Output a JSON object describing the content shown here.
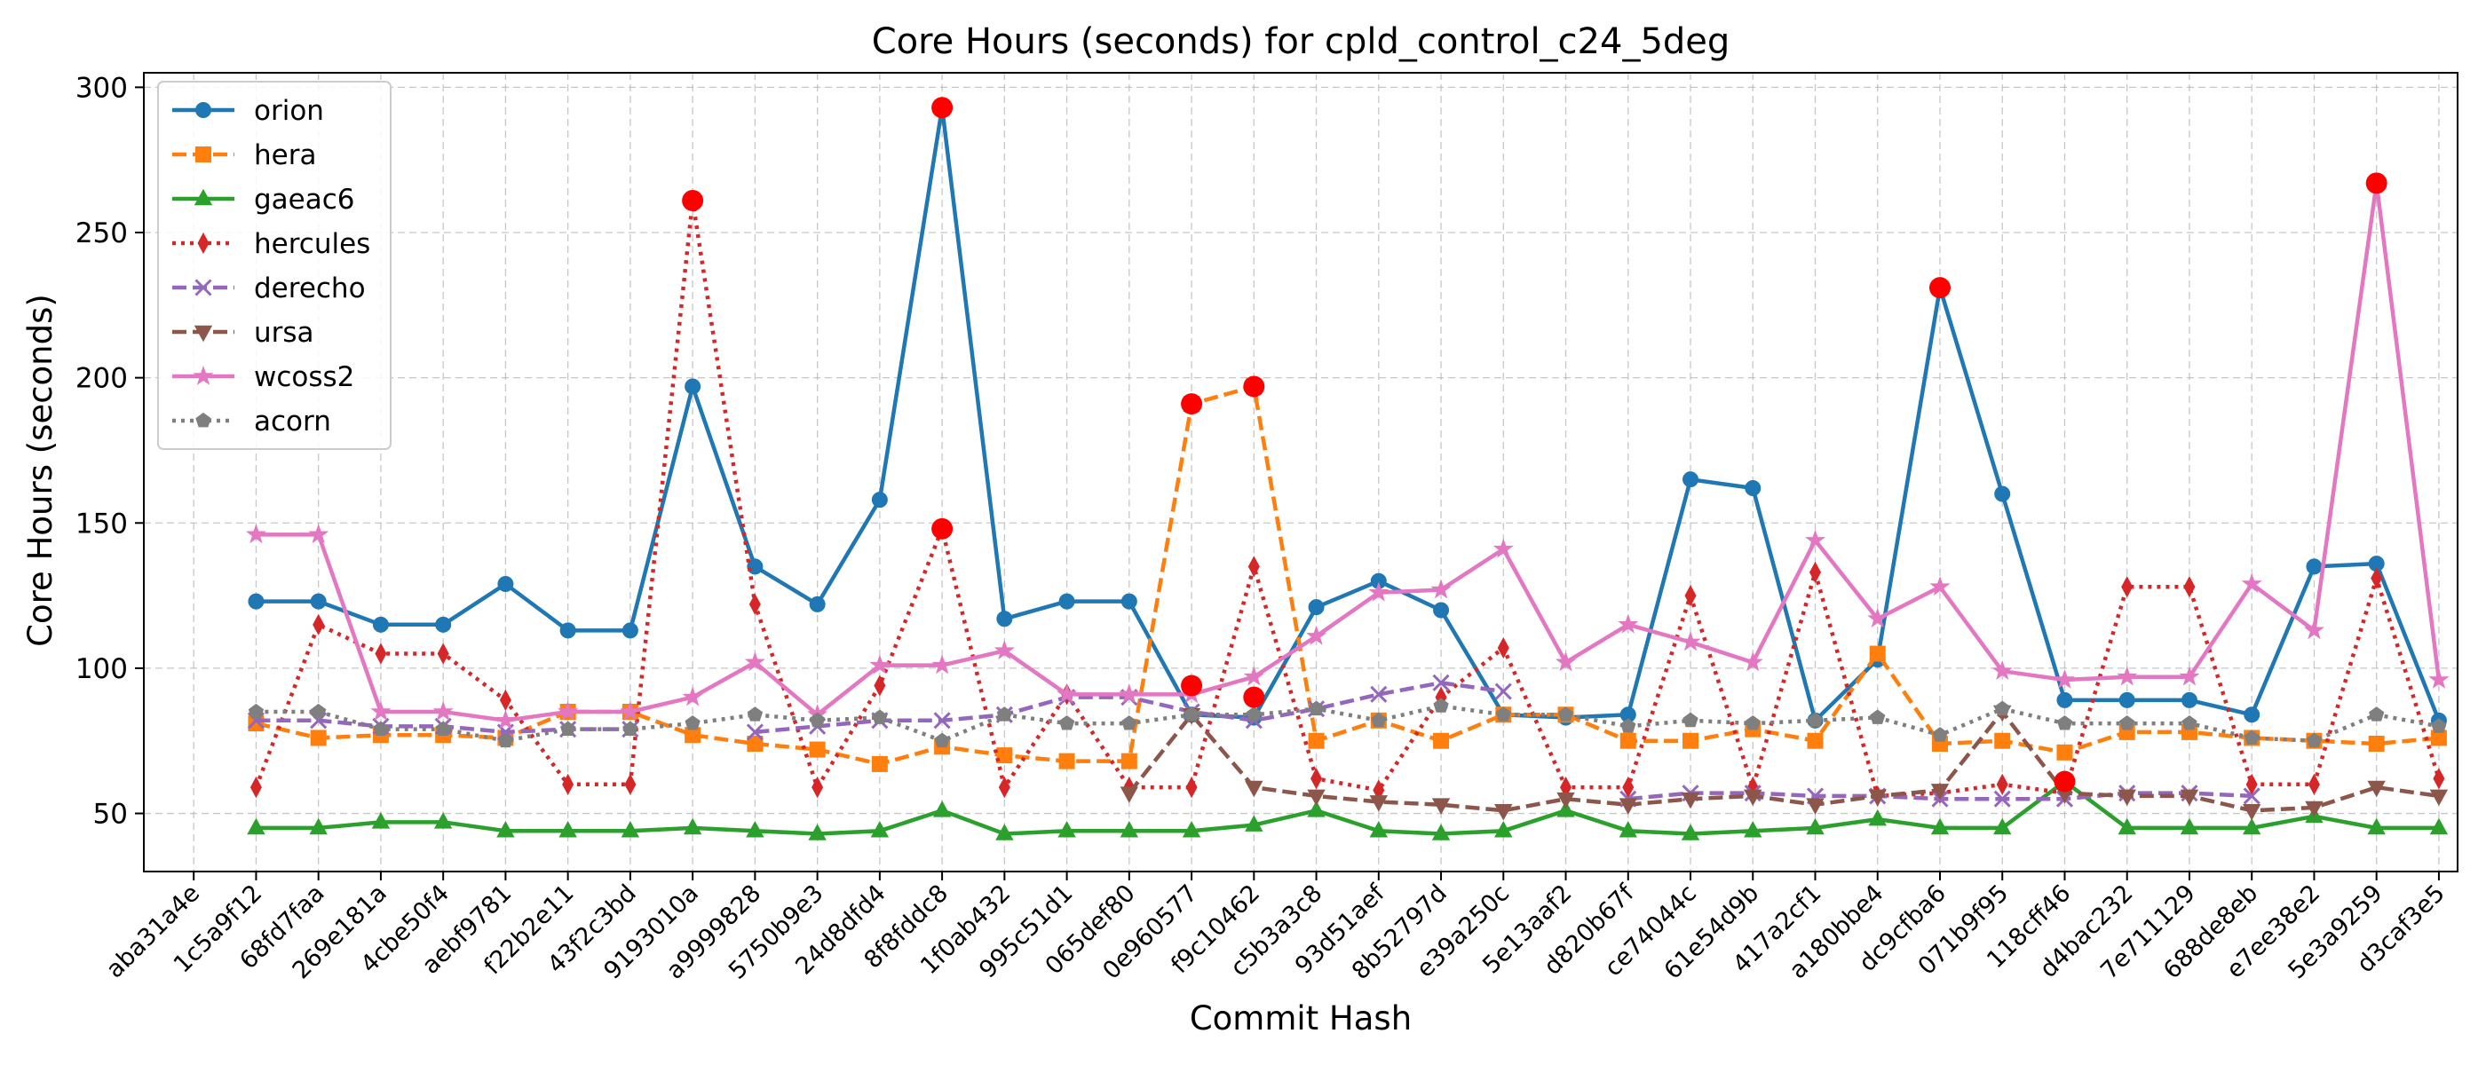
{
  "chart_data": {
    "type": "line",
    "title": "Core Hours (seconds) for cpld_control_c24_5deg",
    "xlabel": "Commit Hash",
    "ylabel": "Core Hours (seconds)",
    "ylim": [
      30,
      305
    ],
    "yticks": [
      50,
      100,
      150,
      200,
      250,
      300
    ],
    "grid": true,
    "legend_position": "top-left",
    "categories": [
      "aba31a4e",
      "1c5a9f12",
      "68fd7faa",
      "269e181a",
      "4cbe50f4",
      "aebf9781",
      "f22b2e11",
      "43f2c3bd",
      "9193010a",
      "a9999828",
      "5750b9e3",
      "24d8dfd4",
      "8f8fddc8",
      "1f0ab432",
      "995c51d1",
      "065def80",
      "0e960577",
      "f9c10462",
      "c5b3a3c8",
      "93d51aef",
      "8b52797d",
      "e39a250c",
      "5e13aaf2",
      "d820b67f",
      "ce74044c",
      "61e54d9b",
      "417a2cf1",
      "a180bbe4",
      "dc9cfba6",
      "071b9f95",
      "118cff46",
      "d4bac232",
      "7e711129",
      "688de8eb",
      "e7ee38e2",
      "5e3a9259",
      "d3caf3e5"
    ],
    "series": [
      {
        "name": "orion",
        "color": "#1f77b4",
        "dash": "solid",
        "marker": "circle",
        "values": [
          null,
          123,
          123,
          115,
          115,
          129,
          113,
          113,
          197,
          135,
          122,
          158,
          293,
          117,
          123,
          123,
          84,
          83,
          121,
          130,
          120,
          84,
          83,
          84,
          165,
          162,
          82,
          103,
          231,
          160,
          89,
          89,
          89,
          84,
          135,
          136,
          82
        ]
      },
      {
        "name": "hera",
        "color": "#ff7f0e",
        "dash": "dashed",
        "marker": "square",
        "values": [
          null,
          81,
          76,
          77,
          77,
          76,
          85,
          85,
          77,
          74,
          72,
          67,
          73,
          70,
          68,
          68,
          191,
          197,
          75,
          82,
          75,
          84,
          84,
          75,
          75,
          79,
          75,
          105,
          74,
          75,
          71,
          78,
          78,
          76,
          75,
          74,
          76
        ]
      },
      {
        "name": "gaeac6",
        "color": "#2ca02c",
        "dash": "solid",
        "marker": "triangle-up",
        "values": [
          null,
          45,
          45,
          47,
          47,
          44,
          44,
          44,
          45,
          44,
          43,
          44,
          51,
          43,
          44,
          44,
          44,
          46,
          51,
          44,
          43,
          44,
          51,
          44,
          43,
          44,
          45,
          48,
          45,
          45,
          61,
          45,
          45,
          45,
          49,
          45,
          45
        ]
      },
      {
        "name": "hercules",
        "color": "#d62728",
        "dash": "dotted",
        "marker": "thin-diamond",
        "values": [
          null,
          59,
          115,
          105,
          105,
          89,
          60,
          60,
          261,
          122,
          59,
          94,
          148,
          59,
          91,
          59,
          59,
          135,
          62,
          58,
          90,
          107,
          59,
          59,
          125,
          59,
          133,
          56,
          57,
          60,
          57,
          128,
          128,
          60,
          60,
          131,
          62
        ]
      },
      {
        "name": "derecho",
        "color": "#9467bd",
        "dash": "dashed",
        "marker": "x",
        "values": [
          null,
          82,
          82,
          80,
          80,
          78,
          79,
          79,
          null,
          78,
          80,
          82,
          82,
          84,
          90,
          90,
          85,
          82,
          86,
          91,
          95,
          92,
          null,
          55,
          57,
          57,
          56,
          56,
          55,
          55,
          55,
          57,
          57,
          56,
          null,
          null,
          null
        ]
      },
      {
        "name": "ursa",
        "color": "#8c564b",
        "dash": "dashed",
        "marker": "triangle-down",
        "values": [
          null,
          null,
          null,
          null,
          null,
          null,
          null,
          null,
          null,
          null,
          null,
          null,
          null,
          null,
          null,
          57,
          84,
          59,
          56,
          54,
          53,
          51,
          55,
          53,
          55,
          56,
          53,
          56,
          58,
          85,
          57,
          56,
          56,
          51,
          52,
          59,
          56
        ]
      },
      {
        "name": "wcoss2",
        "color": "#e377c2",
        "dash": "solid",
        "marker": "star",
        "values": [
          null,
          146,
          146,
          85,
          85,
          82,
          85,
          85,
          90,
          102,
          84,
          101,
          101,
          106,
          91,
          91,
          91,
          97,
          111,
          126,
          127,
          141,
          102,
          115,
          109,
          102,
          144,
          117,
          128,
          99,
          96,
          97,
          97,
          129,
          113,
          267,
          96
        ]
      },
      {
        "name": "acorn",
        "color": "#7f7f7f",
        "dash": "dotted",
        "marker": "pentagon",
        "values": [
          null,
          85,
          85,
          79,
          79,
          75,
          79,
          79,
          81,
          84,
          82,
          83,
          75,
          84,
          81,
          81,
          84,
          84,
          86,
          82,
          87,
          84,
          84,
          80,
          82,
          81,
          82,
          83,
          77,
          86,
          81,
          81,
          81,
          76,
          75,
          84,
          80
        ]
      }
    ],
    "highlights": [
      {
        "x": "9193010a",
        "y": 261
      },
      {
        "x": "8f8fddc8",
        "y": 293
      },
      {
        "x": "8f8fddc8",
        "y": 148
      },
      {
        "x": "0e960577",
        "y": 191
      },
      {
        "x": "f9c10462",
        "y": 197
      },
      {
        "x": "0e960577",
        "y": 94
      },
      {
        "x": "f9c10462",
        "y": 90
      },
      {
        "x": "dc9cfba6",
        "y": 231
      },
      {
        "x": "118cff46",
        "y": 61
      },
      {
        "x": "5e3a9259",
        "y": 267
      }
    ],
    "highlight_color": "#ff0000"
  }
}
